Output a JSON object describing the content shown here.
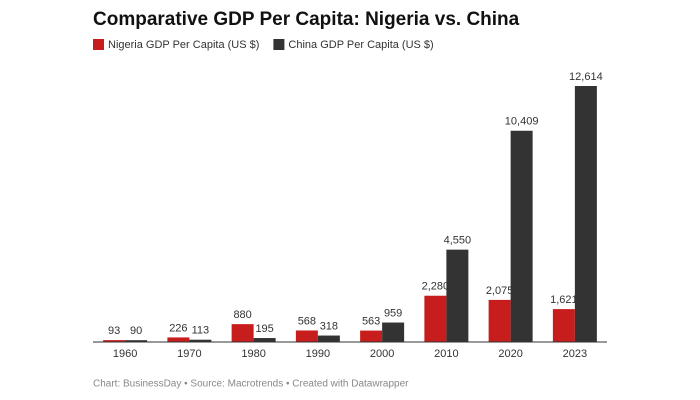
{
  "chart_data": {
    "type": "bar",
    "title": "Comparative GDP Per Capita: Nigeria vs. China",
    "categories": [
      "1960",
      "1970",
      "1980",
      "1990",
      "2000",
      "2010",
      "2020",
      "2023"
    ],
    "series": [
      {
        "name": "Nigeria GDP Per Capita (US $)",
        "color": "#c71e1d",
        "values": [
          93,
          226,
          880,
          568,
          563,
          2280,
          2075,
          1621
        ],
        "value_labels": [
          "93",
          "226",
          "880",
          "568",
          "563",
          "2,280",
          "2,075",
          "1,621"
        ]
      },
      {
        "name": "China GDP Per Capita (US $)",
        "color": "#333333",
        "values": [
          90,
          113,
          195,
          318,
          959,
          4550,
          10409,
          12614
        ],
        "value_labels": [
          "90",
          "113",
          "195",
          "318",
          "959",
          "4,550",
          "10,409",
          "12,614"
        ]
      }
    ],
    "source": "Chart: BusinessDay • Source: Macrotrends • Created with Datawrapper"
  }
}
